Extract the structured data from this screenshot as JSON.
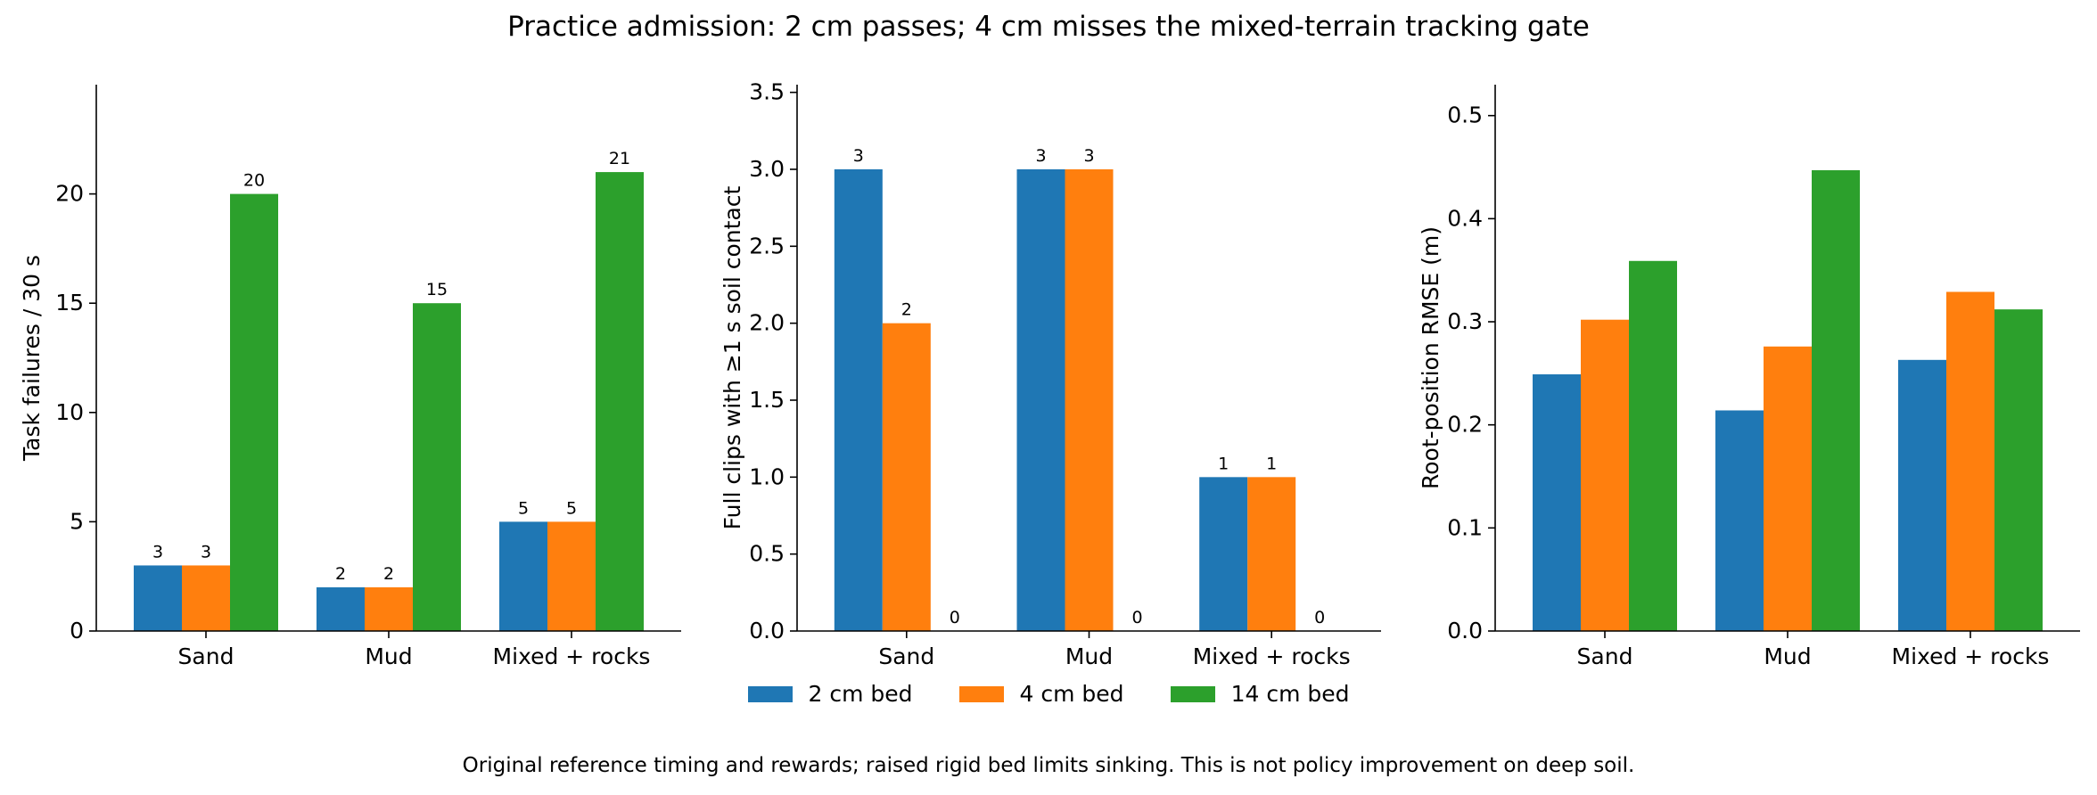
{
  "title": "Practice admission: 2 cm passes; 4 cm misses the mixed-terrain tracking gate",
  "footnote": "Original reference timing and rewards; raised rigid bed limits sinking. This is not policy improvement on deep soil.",
  "legend": [
    {
      "name": "2 cm bed",
      "color": "#1f77b4"
    },
    {
      "name": "4 cm bed",
      "color": "#ff7f0e"
    },
    {
      "name": "14 cm bed",
      "color": "#2ca02c"
    }
  ],
  "chart_data": [
    {
      "type": "bar",
      "categories": [
        "Sand",
        "Mud",
        "Mixed + rocks"
      ],
      "ylabel": "Task failures / 30 s",
      "ylim": [
        0,
        25
      ],
      "yticks": [
        0,
        5,
        10,
        15,
        20
      ],
      "grid": false,
      "value_labels": true,
      "series": [
        {
          "name": "2 cm bed",
          "color": "#1f77b4",
          "values": [
            3,
            2,
            5
          ]
        },
        {
          "name": "4 cm bed",
          "color": "#ff7f0e",
          "values": [
            3,
            2,
            5
          ]
        },
        {
          "name": "14 cm bed",
          "color": "#2ca02c",
          "values": [
            20,
            15,
            21
          ]
        }
      ]
    },
    {
      "type": "bar",
      "categories": [
        "Sand",
        "Mud",
        "Mixed + rocks"
      ],
      "ylabel": "Full clips with ≥1 s soil contact",
      "ylim": [
        0,
        3.55
      ],
      "yticks": [
        0.0,
        0.5,
        1.0,
        1.5,
        2.0,
        2.5,
        3.0,
        3.5
      ],
      "ytick_decimals": 1,
      "grid": false,
      "value_labels": true,
      "series": [
        {
          "name": "2 cm bed",
          "color": "#1f77b4",
          "values": [
            3,
            3,
            1
          ]
        },
        {
          "name": "4 cm bed",
          "color": "#ff7f0e",
          "values": [
            2,
            3,
            1
          ]
        },
        {
          "name": "14 cm bed",
          "color": "#2ca02c",
          "values": [
            0,
            0,
            0
          ]
        }
      ]
    },
    {
      "type": "bar",
      "categories": [
        "Sand",
        "Mud",
        "Mixed + rocks"
      ],
      "ylabel": "Root-position RMSE (m)",
      "ylim": [
        0,
        0.53
      ],
      "yticks": [
        0.0,
        0.1,
        0.2,
        0.3,
        0.4,
        0.5
      ],
      "ytick_decimals": 1,
      "grid": false,
      "value_labels": false,
      "series": [
        {
          "name": "2 cm bed",
          "color": "#1f77b4",
          "values": [
            0.249,
            0.214,
            0.263
          ]
        },
        {
          "name": "4 cm bed",
          "color": "#ff7f0e",
          "values": [
            0.302,
            0.276,
            0.329
          ]
        },
        {
          "name": "14 cm bed",
          "color": "#2ca02c",
          "values": [
            0.359,
            0.447,
            0.312
          ]
        }
      ]
    }
  ]
}
